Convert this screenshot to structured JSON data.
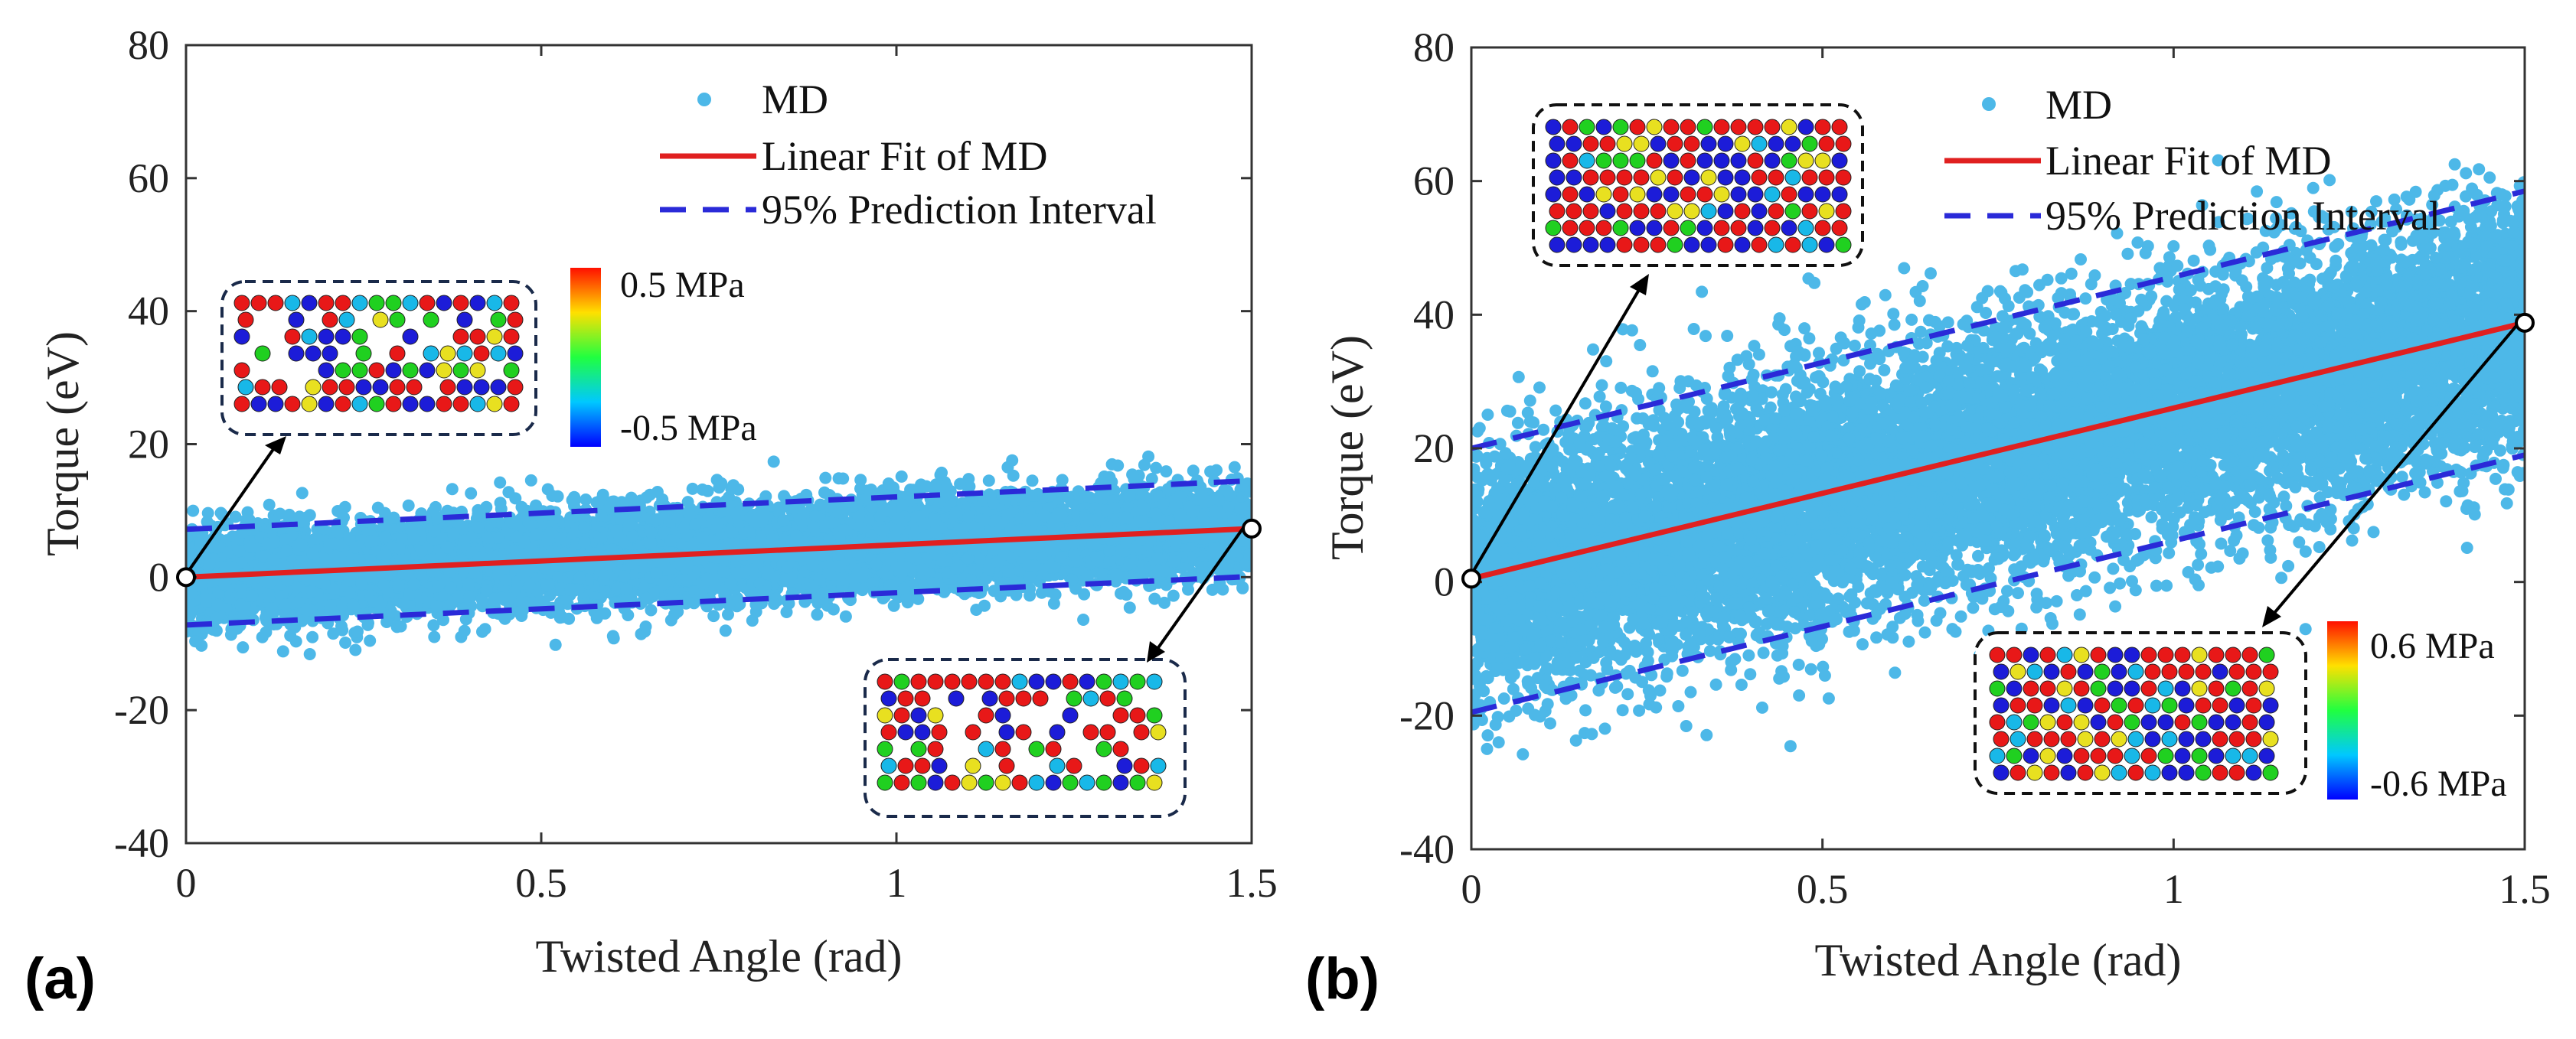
{
  "chart_data": [
    {
      "panel_label": "(a)",
      "type": "scatter",
      "xlabel": "Twisted Angle (rad)",
      "ylabel": "Torque (eV)",
      "xlim": [
        0,
        1.5
      ],
      "ylim": [
        -40,
        80
      ],
      "xticks": [
        0,
        0.5,
        1,
        1.5
      ],
      "xtick_labels": [
        "0",
        "0.5",
        "1",
        "1.5"
      ],
      "yticks": [
        -40,
        -20,
        0,
        20,
        40,
        60,
        80
      ],
      "ytick_labels": [
        "-40",
        "-20",
        "0",
        "20",
        "40",
        "60",
        "80"
      ],
      "grid": false,
      "legend_position": "top-right",
      "series": [
        {
          "name": "MD",
          "kind": "scatter",
          "color": "#4db8e8",
          "model": {
            "intercept": 0,
            "slope": 4.9,
            "spread_sd": 3.6,
            "n_points": 9000
          }
        },
        {
          "name": "Linear Fit of MD",
          "kind": "line",
          "color": "#e02020",
          "x": [
            0,
            1.5
          ],
          "y": [
            0,
            7.3
          ]
        },
        {
          "name": "95% Prediction Interval",
          "kind": "dashed",
          "color": "#2a2ad8",
          "upper": {
            "x": [
              0,
              1.5
            ],
            "y": [
              7.2,
              14.5
            ]
          },
          "lower": {
            "x": [
              0,
              1.5
            ],
            "y": [
              -7.2,
              0.1
            ]
          }
        }
      ],
      "endpoints": [
        {
          "x": 0,
          "y": 0
        },
        {
          "x": 1.5,
          "y": 7.3
        }
      ],
      "colorbar": {
        "max_label": "0.5 MPa",
        "min_label": "-0.5 MPa"
      },
      "insets": [
        "initial structure (x=0)",
        "twisted structure (x=1.5)"
      ]
    },
    {
      "panel_label": "(b)",
      "type": "scatter",
      "xlabel": "Twisted Angle (rad)",
      "ylabel": "Torque (eV)",
      "xlim": [
        0,
        1.5
      ],
      "ylim": [
        -40,
        80
      ],
      "xticks": [
        0,
        0.5,
        1,
        1.5
      ],
      "xtick_labels": [
        "0",
        "0.5",
        "1",
        "1.5"
      ],
      "yticks": [
        -40,
        -20,
        0,
        20,
        40,
        60,
        80
      ],
      "ytick_labels": [
        "-40",
        "-20",
        "0",
        "20",
        "40",
        "60",
        "80"
      ],
      "grid": false,
      "legend_position": "top-right",
      "series": [
        {
          "name": "MD",
          "kind": "scatter",
          "color": "#4db8e8",
          "model": {
            "intercept": 0,
            "slope": 25.8,
            "spread_sd": 9.5,
            "n_points": 12000
          }
        },
        {
          "name": "Linear Fit of MD",
          "kind": "line",
          "color": "#e02020",
          "x": [
            0,
            1.5
          ],
          "y": [
            0.5,
            38.8
          ]
        },
        {
          "name": "95% Prediction Interval",
          "kind": "dashed",
          "color": "#2a2ad8",
          "upper": {
            "x": [
              0,
              1.5
            ],
            "y": [
              20,
              58.5
            ]
          },
          "lower": {
            "x": [
              0,
              1.5
            ],
            "y": [
              -19.5,
              19
            ]
          }
        }
      ],
      "endpoints": [
        {
          "x": 0,
          "y": 0.5
        },
        {
          "x": 1.5,
          "y": 38.8
        }
      ],
      "colorbar": {
        "max_label": "0.6 MPa",
        "min_label": "-0.6 MPa"
      },
      "insets": [
        "initial structure (x=0)",
        "twisted structure (x=1.5)"
      ]
    }
  ]
}
